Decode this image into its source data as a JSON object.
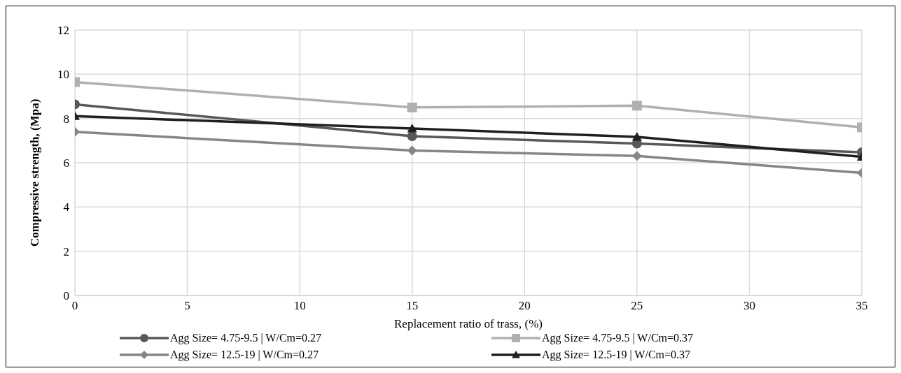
{
  "chart_data": {
    "type": "line",
    "xlabel": "Replacement ratio of trass, (%)",
    "ylabel": "Compressive strength, (Mpa)",
    "x": [
      0,
      15,
      25,
      35
    ],
    "xlim": [
      0,
      35
    ],
    "xticks": [
      0,
      5,
      10,
      15,
      20,
      25,
      30,
      35
    ],
    "ylim": [
      0,
      12
    ],
    "yticks": [
      0,
      2,
      4,
      6,
      8,
      10,
      12
    ],
    "grid": true,
    "legend": "bottom",
    "series": [
      {
        "name": "Agg Size= 4.75-9.5 | W/Cm=0.27",
        "color": "#595959",
        "marker": "circle",
        "values": [
          8.64,
          7.2,
          6.87,
          6.47
        ]
      },
      {
        "name": "Agg Size= 4.75-9.5 | W/Cm=0.37",
        "color": "#b0b0b0",
        "marker": "square",
        "values": [
          9.65,
          8.5,
          8.58,
          7.6
        ]
      },
      {
        "name": "Agg Size= 12.5-19 | W/Cm=0.27",
        "color": "#868686",
        "marker": "diamond",
        "values": [
          7.4,
          6.55,
          6.31,
          5.54
        ]
      },
      {
        "name": "Agg Size= 12.5-19 | W/Cm=0.37",
        "color": "#1f1f1f",
        "marker": "triangle",
        "values": [
          8.11,
          7.55,
          7.17,
          6.27
        ]
      }
    ]
  }
}
